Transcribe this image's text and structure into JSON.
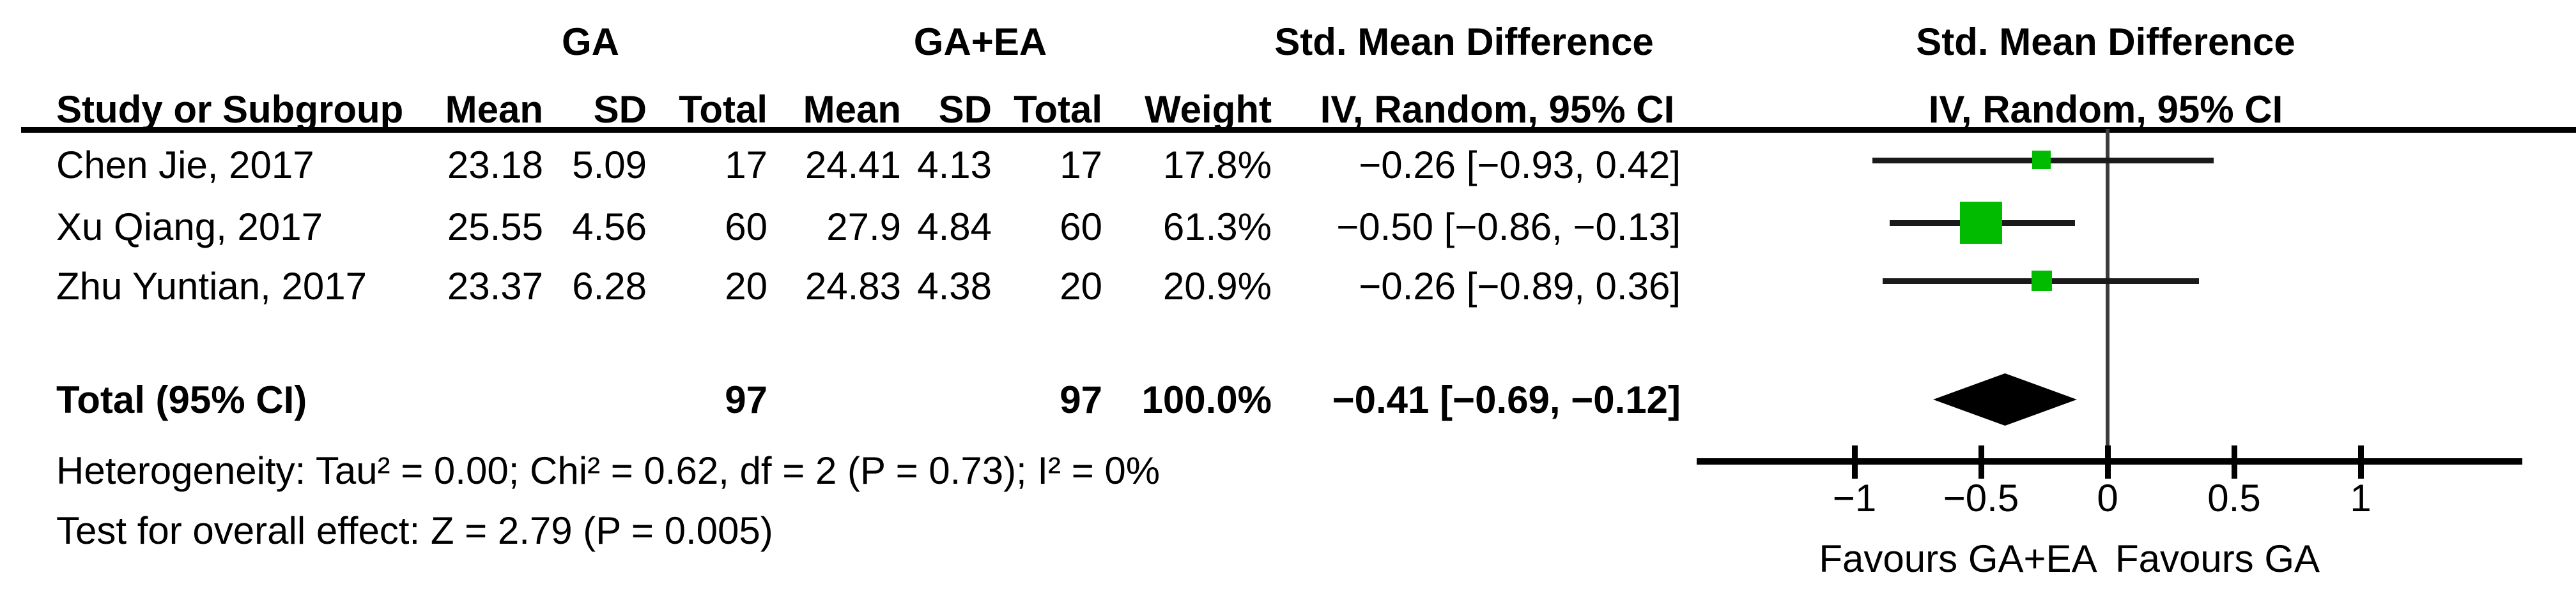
{
  "table": {
    "group1_label": "GA",
    "group2_label": "GA+EA",
    "effect_header_left": "Std. Mean Difference",
    "effect_header_right": "Std. Mean Difference",
    "effect_subheader_left": "IV, Random, 95% CI",
    "effect_subheader_right": "IV, Random, 95% CI",
    "columns": {
      "study": "Study or Subgroup",
      "mean1": "Mean",
      "sd1": "SD",
      "total1": "Total",
      "mean2": "Mean",
      "sd2": "SD",
      "total2": "Total",
      "weight": "Weight"
    },
    "rows": [
      {
        "study": "Chen Jie, 2017",
        "mean1": "23.18",
        "sd1": "5.09",
        "total1": "17",
        "mean2": "24.41",
        "sd2": "4.13",
        "total2": "17",
        "weight": "17.8%",
        "ci": "−0.26 [−0.93, 0.42]"
      },
      {
        "study": "Xu Qiang, 2017",
        "mean1": "25.55",
        "sd1": "4.56",
        "total1": "60",
        "mean2": "27.9",
        "sd2": "4.84",
        "total2": "60",
        "weight": "61.3%",
        "ci": "−0.50 [−0.86, −0.13]"
      },
      {
        "study": "Zhu Yuntian, 2017",
        "mean1": "23.37",
        "sd1": "6.28",
        "total1": "20",
        "mean2": "24.83",
        "sd2": "4.38",
        "total2": "20",
        "weight": "20.9%",
        "ci": "−0.26 [−0.89, 0.36]"
      }
    ],
    "total_row": {
      "label": "Total (95% CI)",
      "total1": "97",
      "total2": "97",
      "weight": "100.0%",
      "ci": "−0.41 [−0.69, −0.12]"
    },
    "footnotes": {
      "heterogeneity": "Heterogeneity: Tau² = 0.00; Chi² = 0.62, df = 2 (P = 0.73); I² = 0%",
      "overall_effect": "Test for overall effect: Z = 2.79 (P = 0.005)"
    }
  },
  "chart_data": {
    "type": "forest",
    "title": "Std. Mean Difference, IV, Random, 95% CI",
    "studies": [
      {
        "name": "Chen Jie, 2017",
        "est": -0.26,
        "lo": -0.93,
        "hi": 0.42,
        "weight": 17.8
      },
      {
        "name": "Xu Qiang, 2017",
        "est": -0.5,
        "lo": -0.86,
        "hi": -0.13,
        "weight": 61.3
      },
      {
        "name": "Zhu Yuntian, 2017",
        "est": -0.26,
        "lo": -0.89,
        "hi": 0.36,
        "weight": 20.9
      }
    ],
    "overall": {
      "est": -0.41,
      "lo": -0.69,
      "hi": -0.12,
      "weight": 100.0
    },
    "heterogeneity": {
      "tau2": 0.0,
      "chi2": 0.62,
      "df": 2,
      "p": 0.73,
      "i2_pct": 0
    },
    "overall_test": {
      "z": 2.79,
      "p": 0.005
    },
    "axis": {
      "xlim": [
        -1.62,
        1.62
      ],
      "tick_values": [
        -1,
        -0.5,
        0,
        0.5,
        1
      ],
      "tick_labels": [
        "−1",
        "−0.5",
        "0",
        "0.5",
        "1"
      ]
    },
    "favours_left": "Favours GA+EA",
    "favours_right": "Favours GA",
    "colors": {
      "marker": "#00bb00",
      "ci_line": "#1a1a1a",
      "diamond": "#000000",
      "axis": "#000000",
      "zero_line": "#3c3c3c",
      "text": "#000000"
    }
  }
}
